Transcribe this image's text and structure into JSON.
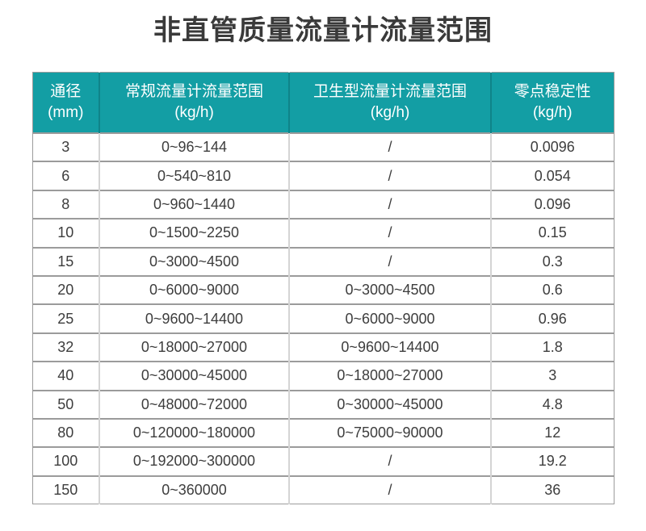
{
  "title": "非直管质量流量计流量范围",
  "table": {
    "headers": [
      {
        "line1": "通径",
        "line2": "(mm)"
      },
      {
        "line1": "常规流量计流量范围",
        "line2": "(kg/h)"
      },
      {
        "line1": "卫生型流量计流量范围",
        "line2": "(kg/h)"
      },
      {
        "line1": "零点稳定性",
        "line2": "(kg/h)"
      }
    ],
    "rows": [
      [
        "3",
        "0~96~144",
        "/",
        "0.0096"
      ],
      [
        "6",
        "0~540~810",
        "/",
        "0.054"
      ],
      [
        "8",
        "0~960~1440",
        "/",
        "0.096"
      ],
      [
        "10",
        "0~1500~2250",
        "/",
        "0.15"
      ],
      [
        "15",
        "0~3000~4500",
        "/",
        "0.3"
      ],
      [
        "20",
        "0~6000~9000",
        "0~3000~4500",
        "0.6"
      ],
      [
        "25",
        "0~9600~14400",
        "0~6000~9000",
        "0.96"
      ],
      [
        "32",
        "0~18000~27000",
        "0~9600~14400",
        "1.8"
      ],
      [
        "40",
        "0~30000~45000",
        "0~18000~27000",
        "3"
      ],
      [
        "50",
        "0~48000~72000",
        "0~30000~45000",
        "4.8"
      ],
      [
        "80",
        "0~120000~180000",
        "0~75000~90000",
        "12"
      ],
      [
        "100",
        "0~192000~300000",
        "/",
        "19.2"
      ],
      [
        "150",
        "0~360000",
        "/",
        "36"
      ]
    ]
  },
  "colors": {
    "header_bg": "#139ea4",
    "header_text": "#ffffff",
    "title_text": "#3a3a3a",
    "cell_text": "#3d3d3d",
    "row_border": "#9b9b9b",
    "column_border": "#d4d4d4",
    "table_outline": "#9c9c9c"
  }
}
